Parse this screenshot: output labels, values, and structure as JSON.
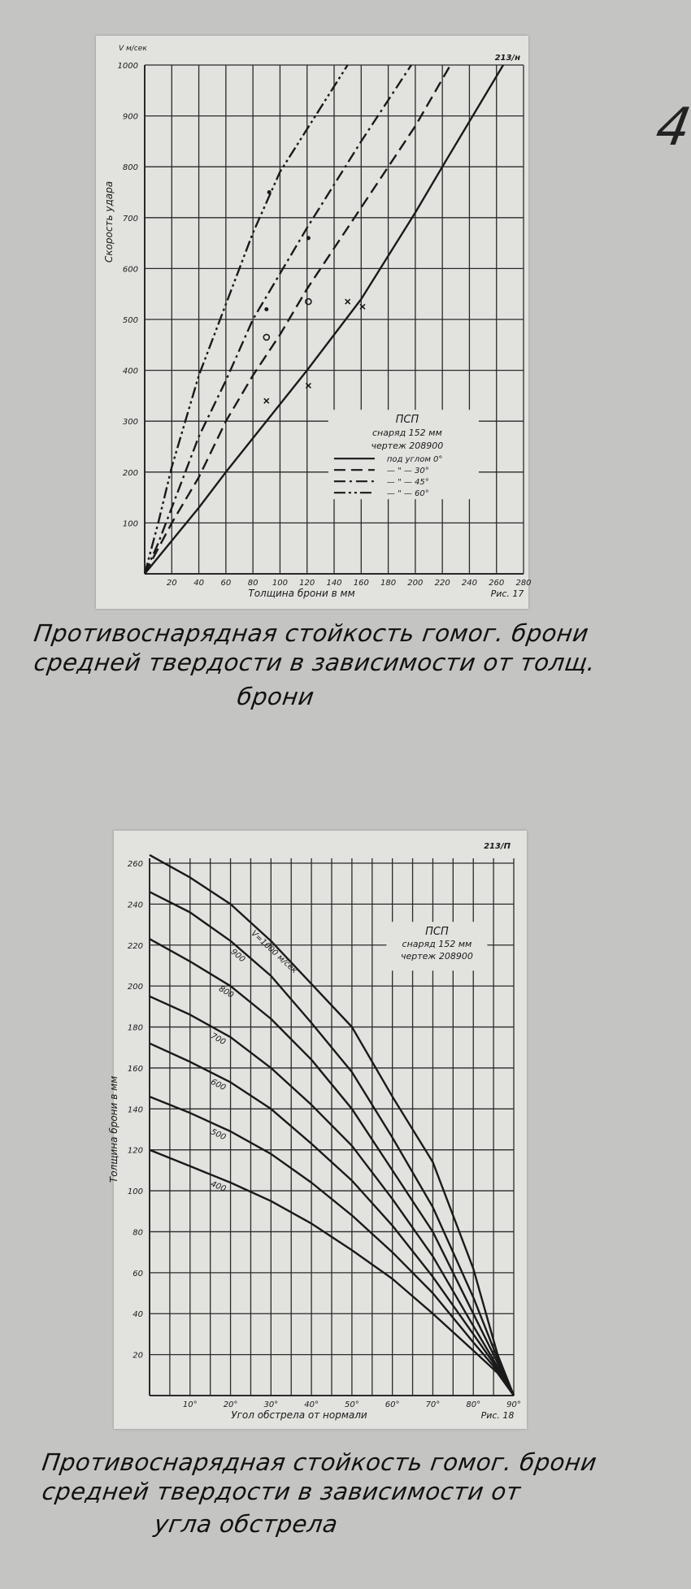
{
  "page_number": "4",
  "captions": [
    [
      "Противоснарядная стойкость гомог. брони",
      "средней твердости в зависимости от толщ.",
      "брони"
    ],
    [
      "Противоснарядная стойкость гомог. брони",
      "средней твердости в зависимости от",
      "угла обстрела"
    ]
  ],
  "colors": {
    "paper": "#e2e2df",
    "background": "#c4c4c2",
    "ink": "#1a1a1a",
    "grid": "#2a2a2a"
  },
  "chart_data": [
    {
      "type": "line",
      "sheet_code": "213/н",
      "figure_label": "Рис. 17",
      "unit_label": "V м/сек",
      "xlabel": "Толщина брони в мм",
      "ylabel": "Скорость удара",
      "xlim": [
        0,
        280
      ],
      "ylim": [
        0,
        1000
      ],
      "xticks": [
        20,
        40,
        60,
        80,
        100,
        120,
        140,
        160,
        180,
        200,
        220,
        240,
        260,
        280
      ],
      "yticks": [
        100,
        200,
        300,
        400,
        500,
        600,
        700,
        800,
        900,
        1000
      ],
      "grid": true,
      "legend": {
        "placement": "bottom-right",
        "title": [
          "ПСП",
          "снаряд 152 мм",
          "чертеж 208900"
        ],
        "entries": [
          "под углом 0°",
          "— \" — 30°",
          "— \" — 45°",
          "— \" — 60°"
        ]
      },
      "series": [
        {
          "name": "под углом 0°",
          "style": "solid",
          "points": [
            [
              0,
              0
            ],
            [
              40,
              130
            ],
            [
              60,
              200
            ],
            [
              120,
              400
            ],
            [
              160,
              540
            ],
            [
              200,
              710
            ],
            [
              220,
              800
            ],
            [
              265,
              1000
            ]
          ]
        },
        {
          "name": "30°",
          "style": "dashed",
          "points": [
            [
              0,
              0
            ],
            [
              20,
              100
            ],
            [
              40,
              190
            ],
            [
              60,
              300
            ],
            [
              80,
              390
            ],
            [
              100,
              470
            ],
            [
              120,
              560
            ],
            [
              160,
              720
            ],
            [
              200,
              880
            ],
            [
              226,
              1000
            ]
          ]
        },
        {
          "name": "45°",
          "style": "dashdot",
          "points": [
            [
              0,
              0
            ],
            [
              10,
              60
            ],
            [
              20,
              130
            ],
            [
              40,
              270
            ],
            [
              60,
              380
            ],
            [
              80,
              500
            ],
            [
              100,
              590
            ],
            [
              120,
              680
            ],
            [
              160,
              850
            ],
            [
              197,
              1000
            ]
          ]
        },
        {
          "name": "60°",
          "style": "dashdotdot",
          "points": [
            [
              0,
              0
            ],
            [
              10,
              100
            ],
            [
              20,
              210
            ],
            [
              40,
              390
            ],
            [
              60,
              530
            ],
            [
              80,
              670
            ],
            [
              100,
              790
            ],
            [
              150,
              1000
            ]
          ]
        }
      ],
      "markers": [
        {
          "shape": "cross",
          "x": 90,
          "y": 340
        },
        {
          "shape": "cross",
          "x": 121,
          "y": 370
        },
        {
          "shape": "cross",
          "x": 150,
          "y": 535
        },
        {
          "shape": "cross",
          "x": 161,
          "y": 525
        },
        {
          "shape": "circle",
          "x": 90,
          "y": 465
        },
        {
          "shape": "circle",
          "x": 121,
          "y": 535
        },
        {
          "shape": "dot",
          "x": 90,
          "y": 520
        },
        {
          "shape": "dot",
          "x": 121,
          "y": 660
        },
        {
          "shape": "dot",
          "x": 92,
          "y": 750
        }
      ]
    },
    {
      "type": "line",
      "sheet_code": "213/П",
      "figure_label": "Рис. 18",
      "xlabel": "Угол обстрела от нормали",
      "ylabel": "Толщина брони в мм",
      "xlim": [
        0,
        90
      ],
      "ylim": [
        0,
        260
      ],
      "xticks": [
        "10°",
        "20°",
        "30°",
        "40°",
        "50°",
        "60°",
        "70°",
        "80°",
        "90°"
      ],
      "yticks": [
        20,
        40,
        60,
        80,
        100,
        120,
        140,
        160,
        180,
        200,
        220,
        240,
        260
      ],
      "grid": true,
      "legend": {
        "placement": "top-right",
        "title": [
          "ПСП",
          "снаряд 152 мм",
          "чертеж 208900"
        ]
      },
      "series": [
        {
          "name": "V=1000 м/сек",
          "label_at": 25,
          "points": [
            [
              0,
              264
            ],
            [
              10,
              253
            ],
            [
              20,
              240
            ],
            [
              30,
              222
            ],
            [
              40,
              201
            ],
            [
              50,
              180
            ],
            [
              60,
              146
            ],
            [
              70,
              114
            ],
            [
              80,
              62
            ],
            [
              86,
              20
            ],
            [
              90,
              0
            ]
          ]
        },
        {
          "name": "900",
          "label_at": 20,
          "points": [
            [
              0,
              246
            ],
            [
              10,
              236
            ],
            [
              20,
              222
            ],
            [
              30,
              205
            ],
            [
              40,
              182
            ],
            [
              50,
              158
            ],
            [
              60,
              126
            ],
            [
              70,
              92
            ],
            [
              80,
              48
            ],
            [
              86,
              18
            ],
            [
              90,
              0
            ]
          ]
        },
        {
          "name": "800",
          "label_at": 17,
          "points": [
            [
              0,
              223
            ],
            [
              10,
              212
            ],
            [
              20,
              200
            ],
            [
              30,
              184
            ],
            [
              40,
              164
            ],
            [
              50,
              140
            ],
            [
              60,
              110
            ],
            [
              70,
              80
            ],
            [
              80,
              40
            ],
            [
              86,
              16
            ],
            [
              90,
              0
            ]
          ]
        },
        {
          "name": "700",
          "label_at": 15,
          "points": [
            [
              0,
              195
            ],
            [
              10,
              186
            ],
            [
              20,
              175
            ],
            [
              30,
              160
            ],
            [
              40,
              142
            ],
            [
              50,
              122
            ],
            [
              60,
              96
            ],
            [
              70,
              68
            ],
            [
              80,
              34
            ],
            [
              86,
              14
            ],
            [
              90,
              0
            ]
          ]
        },
        {
          "name": "600",
          "label_at": 15,
          "points": [
            [
              0,
              172
            ],
            [
              10,
              163
            ],
            [
              20,
              153
            ],
            [
              30,
              140
            ],
            [
              40,
              123
            ],
            [
              50,
              105
            ],
            [
              60,
              83
            ],
            [
              70,
              58
            ],
            [
              80,
              30
            ],
            [
              86,
              13
            ],
            [
              90,
              0
            ]
          ]
        },
        {
          "name": "500",
          "label_at": 15,
          "points": [
            [
              0,
              146
            ],
            [
              10,
              138
            ],
            [
              20,
              129
            ],
            [
              30,
              118
            ],
            [
              40,
              104
            ],
            [
              50,
              88
            ],
            [
              60,
              70
            ],
            [
              70,
              50
            ],
            [
              80,
              26
            ],
            [
              86,
              12
            ],
            [
              90,
              0
            ]
          ]
        },
        {
          "name": "400",
          "label_at": 15,
          "points": [
            [
              0,
              120
            ],
            [
              10,
              112
            ],
            [
              20,
              104
            ],
            [
              30,
              95
            ],
            [
              40,
              84
            ],
            [
              50,
              71
            ],
            [
              60,
              57
            ],
            [
              70,
              40
            ],
            [
              80,
              22
            ],
            [
              86,
              11
            ],
            [
              90,
              0
            ]
          ]
        }
      ]
    }
  ]
}
